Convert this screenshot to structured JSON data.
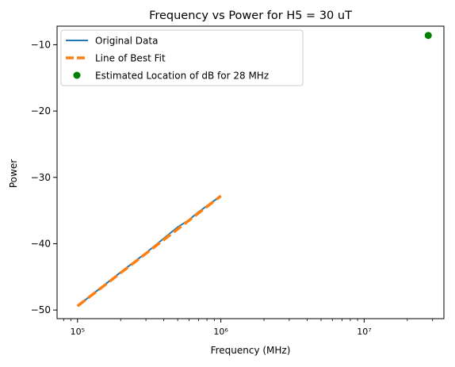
{
  "chart_data": {
    "type": "line",
    "title": "Frequency vs Power for H5 = 30 uT",
    "xlabel": "Frequency (MHz)",
    "ylabel": "Power",
    "xscale": "log",
    "xlim": [
      72000,
      36000000
    ],
    "ylim": [
      -51.3,
      -7.2
    ],
    "x_ticks": [
      {
        "value": 100000,
        "label": "10⁵"
      },
      {
        "value": 1000000,
        "label": "10⁶"
      },
      {
        "value": 10000000,
        "label": "10⁷"
      }
    ],
    "y_ticks": [
      {
        "value": -10,
        "label": "−10"
      },
      {
        "value": -20,
        "label": "−20"
      },
      {
        "value": -30,
        "label": "−30"
      },
      {
        "value": -40,
        "label": "−40"
      },
      {
        "value": -50,
        "label": "−50"
      }
    ],
    "grid": false,
    "legend_position": "top-left",
    "series": [
      {
        "name": "Original Data",
        "style": "line",
        "color": "#1f77b4",
        "x": [
          100000,
          200000,
          300000,
          400000,
          500000,
          600000,
          700000,
          800000,
          900000,
          1000000
        ],
        "y": [
          -49.4,
          -44.3,
          -41.4,
          -39.2,
          -37.5,
          -36.4,
          -35.2,
          -34.3,
          -33.5,
          -32.8
        ]
      },
      {
        "name": "Line of Best Fit",
        "style": "dashed",
        "color": "#ff7f0e",
        "x": [
          100000,
          1000000
        ],
        "y": [
          -49.4,
          -32.8
        ]
      },
      {
        "name": "Estimated Location of dB for 28 MHz",
        "style": "point",
        "color": "#008000",
        "x": [
          28000000
        ],
        "y": [
          -8.6
        ]
      }
    ]
  }
}
